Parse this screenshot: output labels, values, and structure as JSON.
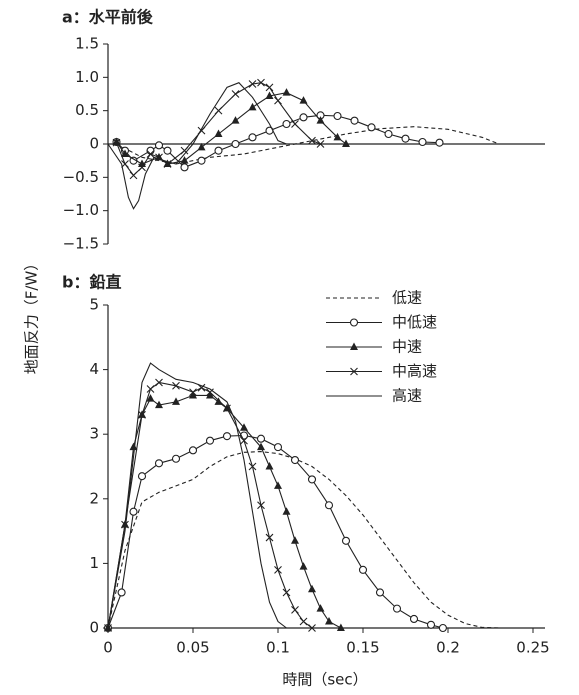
{
  "chart_data": [
    {
      "type": "line",
      "title": "a：水平前後",
      "xlim": [
        0,
        0.25
      ],
      "ylim": [
        -1.5,
        1.5
      ],
      "yticks": [
        {
          "value": 1.5,
          "label": "1.5"
        },
        {
          "value": 1,
          "label": "1.0"
        },
        {
          "value": 0.5,
          "label": "0.5"
        },
        0,
        {
          "value": -0.5,
          "label": "−0.5"
        },
        {
          "value": -1,
          "label": "−1.0"
        },
        {
          "value": -1.5,
          "label": "−1.5"
        }
      ],
      "series": [
        {
          "style": "dashed",
          "color": "#222222",
          "x": [
            0.005,
            0.02,
            0.04,
            0.06,
            0.08,
            0.1,
            0.12,
            0.14,
            0.16,
            0.18,
            0.2,
            0.22,
            0.23
          ],
          "values": [
            0,
            -0.2,
            -0.3,
            -0.2,
            -0.15,
            -0.05,
            0.05,
            0.15,
            0.23,
            0.26,
            0.22,
            0.1,
            0
          ]
        },
        {
          "style": "circle",
          "color": "#222222",
          "x": [
            0.005,
            0.01,
            0.015,
            0.025,
            0.03,
            0.035,
            0.045,
            0.055,
            0.065,
            0.075,
            0.085,
            0.095,
            0.105,
            0.115,
            0.125,
            0.135,
            0.145,
            0.155,
            0.165,
            0.175,
            0.185,
            0.195
          ],
          "values": [
            0.03,
            -0.1,
            -0.25,
            -0.1,
            -0.02,
            -0.1,
            -0.35,
            -0.25,
            -0.1,
            0,
            0.1,
            0.2,
            0.3,
            0.4,
            0.43,
            0.42,
            0.35,
            0.25,
            0.15,
            0.08,
            0.03,
            0.02
          ]
        },
        {
          "style": "triangle",
          "color": "#222222",
          "x": [
            0.005,
            0.01,
            0.02,
            0.03,
            0.035,
            0.045,
            0.055,
            0.065,
            0.075,
            0.085,
            0.095,
            0.105,
            0.115,
            0.125,
            0.135,
            0.14
          ],
          "values": [
            0.03,
            -0.15,
            -0.3,
            -0.2,
            -0.3,
            -0.25,
            -0.05,
            0.15,
            0.35,
            0.55,
            0.72,
            0.77,
            0.65,
            0.35,
            0.1,
            0
          ]
        },
        {
          "style": "cross",
          "color": "#222222",
          "x": [
            0.005,
            0.01,
            0.015,
            0.02,
            0.025,
            0.03,
            0.035,
            0.045,
            0.055,
            0.065,
            0.075,
            0.085,
            0.09,
            0.095,
            0.1,
            0.11,
            0.12,
            0.125
          ],
          "values": [
            0.02,
            -0.3,
            -0.47,
            -0.35,
            -0.15,
            -0.2,
            -0.3,
            -0.1,
            0.2,
            0.5,
            0.75,
            0.9,
            0.92,
            0.85,
            0.65,
            0.3,
            0.05,
            0
          ]
        },
        {
          "style": "solid",
          "color": "#222222",
          "x": [
            0,
            0.008,
            0.012,
            0.015,
            0.018,
            0.022,
            0.027,
            0.033,
            0.04,
            0.05,
            0.06,
            0.07,
            0.077,
            0.085,
            0.095,
            0.1,
            0.105
          ],
          "values": [
            0,
            -0.3,
            -0.8,
            -0.97,
            -0.85,
            -0.45,
            -0.2,
            -0.25,
            -0.3,
            0,
            0.45,
            0.85,
            0.92,
            0.7,
            0.3,
            0.05,
            0
          ]
        }
      ]
    },
    {
      "type": "line",
      "title": "b：鉛直",
      "ylabel": "地面反力（F/W）",
      "xlabel": "時間（sec）",
      "xlim": [
        0,
        0.25
      ],
      "ylim": [
        0,
        5
      ],
      "xticks": [
        0,
        0.05,
        0.1,
        0.15,
        0.2,
        0.25
      ],
      "yticks": [
        0,
        1,
        2,
        3,
        4,
        5
      ],
      "legend": "upper right",
      "series": [
        {
          "name": "低速",
          "style": "dashed",
          "color": "#222222",
          "x": [
            0,
            0.01,
            0.02,
            0.03,
            0.04,
            0.05,
            0.06,
            0.07,
            0.08,
            0.09,
            0.1,
            0.11,
            0.12,
            0.13,
            0.14,
            0.15,
            0.16,
            0.17,
            0.18,
            0.19,
            0.2,
            0.21,
            0.22,
            0.23
          ],
          "values": [
            0,
            1.2,
            1.95,
            2.1,
            2.2,
            2.3,
            2.5,
            2.65,
            2.72,
            2.73,
            2.7,
            2.62,
            2.5,
            2.3,
            2.05,
            1.75,
            1.4,
            1.05,
            0.7,
            0.4,
            0.2,
            0.07,
            0.01,
            0
          ]
        },
        {
          "name": "中低速",
          "style": "circle",
          "color": "#222222",
          "x": [
            0,
            0.008,
            0.015,
            0.02,
            0.03,
            0.04,
            0.05,
            0.06,
            0.07,
            0.08,
            0.09,
            0.1,
            0.11,
            0.12,
            0.13,
            0.14,
            0.15,
            0.16,
            0.17,
            0.18,
            0.19,
            0.197
          ],
          "values": [
            0,
            0.55,
            1.8,
            2.35,
            2.55,
            2.62,
            2.75,
            2.9,
            2.97,
            2.98,
            2.93,
            2.8,
            2.6,
            2.3,
            1.9,
            1.35,
            0.9,
            0.55,
            0.3,
            0.14,
            0.05,
            0
          ]
        },
        {
          "name": "中速",
          "style": "triangle",
          "color": "#222222",
          "x": [
            0,
            0.01,
            0.015,
            0.02,
            0.025,
            0.03,
            0.04,
            0.05,
            0.06,
            0.065,
            0.07,
            0.08,
            0.09,
            0.095,
            0.1,
            0.105,
            0.11,
            0.115,
            0.12,
            0.125,
            0.13,
            0.137
          ],
          "values": [
            0,
            1.6,
            2.8,
            3.3,
            3.55,
            3.45,
            3.5,
            3.6,
            3.6,
            3.5,
            3.4,
            3.1,
            2.8,
            2.5,
            2.2,
            1.8,
            1.35,
            0.95,
            0.6,
            0.3,
            0.1,
            0
          ]
        },
        {
          "name": "中高速",
          "style": "cross",
          "color": "#222222",
          "x": [
            0,
            0.01,
            0.02,
            0.025,
            0.03,
            0.04,
            0.05,
            0.055,
            0.06,
            0.07,
            0.08,
            0.085,
            0.09,
            0.095,
            0.1,
            0.105,
            0.11,
            0.115,
            0.12
          ],
          "values": [
            0,
            1.6,
            3.3,
            3.7,
            3.8,
            3.75,
            3.65,
            3.72,
            3.65,
            3.4,
            2.9,
            2.5,
            1.9,
            1.4,
            0.9,
            0.55,
            0.28,
            0.1,
            0
          ]
        },
        {
          "name": "高速",
          "style": "solid",
          "color": "#222222",
          "x": [
            0,
            0.01,
            0.02,
            0.025,
            0.03,
            0.04,
            0.05,
            0.06,
            0.07,
            0.075,
            0.08,
            0.085,
            0.09,
            0.095,
            0.1,
            0.105
          ],
          "values": [
            0,
            1.5,
            3.8,
            4.1,
            4,
            3.85,
            3.8,
            3.7,
            3.5,
            3.2,
            2.6,
            1.8,
            1,
            0.4,
            0.1,
            0
          ]
        }
      ]
    }
  ]
}
